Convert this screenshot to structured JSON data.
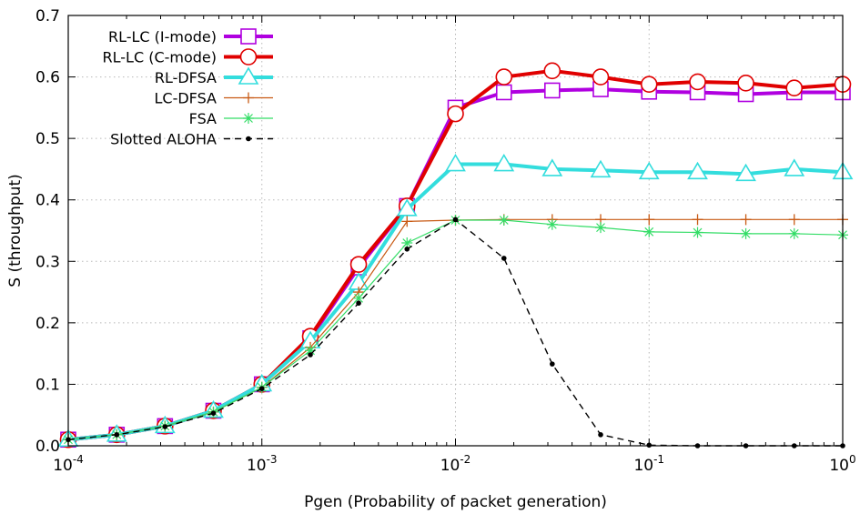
{
  "chart_data": {
    "type": "line",
    "title": "",
    "xlabel": "Pgen (Probability of packet generation)",
    "ylabel": "S (throughput)",
    "xscale": "log",
    "xlim": [
      0.0001,
      1
    ],
    "ylim": [
      0,
      0.7
    ],
    "grid": true,
    "legend_position": "top-left",
    "x_ticks": [
      {
        "value": 0.0001,
        "base": "10",
        "exp": "-4"
      },
      {
        "value": 0.001,
        "base": "10",
        "exp": "-3"
      },
      {
        "value": 0.01,
        "base": "10",
        "exp": "-2"
      },
      {
        "value": 0.1,
        "base": "10",
        "exp": "-1"
      },
      {
        "value": 1,
        "base": "10",
        "exp": "0"
      }
    ],
    "y_ticks": [
      "0.0",
      "0.1",
      "0.2",
      "0.3",
      "0.4",
      "0.5",
      "0.6",
      "0.7"
    ],
    "x": [
      0.0001,
      0.000178,
      0.000316,
      0.000562,
      0.001,
      0.00178,
      0.00316,
      0.00562,
      0.01,
      0.0178,
      0.0316,
      0.0562,
      0.1,
      0.178,
      0.316,
      0.562,
      1
    ],
    "series": [
      {
        "name": "RL-LC (I-mode)",
        "color": "#b000e0",
        "marker": "square",
        "line_width": 4,
        "values": [
          0.01,
          0.018,
          0.032,
          0.057,
          0.1,
          0.175,
          0.29,
          0.39,
          0.55,
          0.575,
          0.578,
          0.58,
          0.576,
          0.575,
          0.572,
          0.575,
          0.575
        ]
      },
      {
        "name": "RL-LC (C-mode)",
        "color": "#e00000",
        "marker": "circle",
        "line_width": 4,
        "values": [
          0.01,
          0.018,
          0.032,
          0.057,
          0.1,
          0.178,
          0.295,
          0.39,
          0.54,
          0.6,
          0.61,
          0.6,
          0.588,
          0.592,
          0.59,
          0.582,
          0.588
        ]
      },
      {
        "name": "RL-DFSA",
        "color": "#33dddd",
        "marker": "triangle",
        "line_width": 4,
        "values": [
          0.01,
          0.018,
          0.032,
          0.057,
          0.1,
          0.17,
          0.265,
          0.385,
          0.458,
          0.458,
          0.45,
          0.448,
          0.445,
          0.445,
          0.442,
          0.45,
          0.445
        ]
      },
      {
        "name": "LC-DFSA",
        "color": "#c85a14",
        "marker": "plus",
        "line_width": 1.2,
        "values": [
          0.01,
          0.018,
          0.032,
          0.055,
          0.095,
          0.16,
          0.25,
          0.365,
          0.367,
          0.368,
          0.368,
          0.368,
          0.368,
          0.368,
          0.368,
          0.368,
          0.368
        ]
      },
      {
        "name": "FSA",
        "color": "#33dd66",
        "marker": "star",
        "line_width": 1.2,
        "values": [
          0.01,
          0.018,
          0.032,
          0.055,
          0.095,
          0.155,
          0.24,
          0.33,
          0.367,
          0.367,
          0.36,
          0.355,
          0.348,
          0.347,
          0.345,
          0.345,
          0.343
        ]
      },
      {
        "name": "Slotted ALOHA",
        "color": "#000000",
        "marker": "dot",
        "line_width": 1.4,
        "dashed": true,
        "values": [
          0.01,
          0.018,
          0.031,
          0.053,
          0.093,
          0.148,
          0.232,
          0.32,
          0.368,
          0.305,
          0.133,
          0.018,
          0.001,
          0.0,
          0.0,
          0.0,
          0.0
        ]
      }
    ]
  }
}
